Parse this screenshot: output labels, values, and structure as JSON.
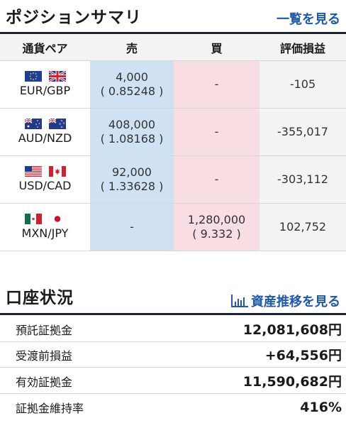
{
  "positions": {
    "title": "ポジションサマリ",
    "link": "一覧を見る",
    "headers": {
      "pair": "通貨ペア",
      "sell": "売",
      "buy": "買",
      "pl": "評価損益"
    },
    "rows": [
      {
        "pair": "EUR/GBP",
        "flag1": "eu-flag-icon",
        "flag2": "uk-flag-icon",
        "sell_amount": "4,000",
        "sell_rate": "( 0.85248 )",
        "buy_amount": "-",
        "buy_rate": "",
        "pl": "-105"
      },
      {
        "pair": "AUD/NZD",
        "flag1": "au-flag-icon",
        "flag2": "nz-flag-icon",
        "sell_amount": "408,000",
        "sell_rate": "( 1.08168 )",
        "buy_amount": "-",
        "buy_rate": "",
        "pl": "-355,017"
      },
      {
        "pair": "USD/CAD",
        "flag1": "us-flag-icon",
        "flag2": "ca-flag-icon",
        "sell_amount": "92,000",
        "sell_rate": "( 1.33628 )",
        "buy_amount": "-",
        "buy_rate": "",
        "pl": "-303,112"
      },
      {
        "pair": "MXN/JPY",
        "flag1": "mx-flag-icon",
        "flag2": "jp-flag-icon",
        "sell_amount": "-",
        "sell_rate": "",
        "buy_amount": "1,280,000",
        "buy_rate": "( 9.332 )",
        "pl": "102,752"
      }
    ]
  },
  "account": {
    "title": "口座状況",
    "link": "資産推移を見る",
    "link_icon": "bar-chart-icon",
    "rows": [
      {
        "label": "預託証拠金",
        "value": "12,081,608円"
      },
      {
        "label": "受渡前損益",
        "value": "+64,556円"
      },
      {
        "label": "有効証拠金",
        "value": "11,590,682円"
      },
      {
        "label": "証拠金維持率",
        "value": "416%"
      }
    ]
  },
  "colors": {
    "sell_bg": "#cfe1f3",
    "buy_bg": "#f8dde2",
    "link": "#1f5aa8",
    "divider": "#1c2233"
  }
}
